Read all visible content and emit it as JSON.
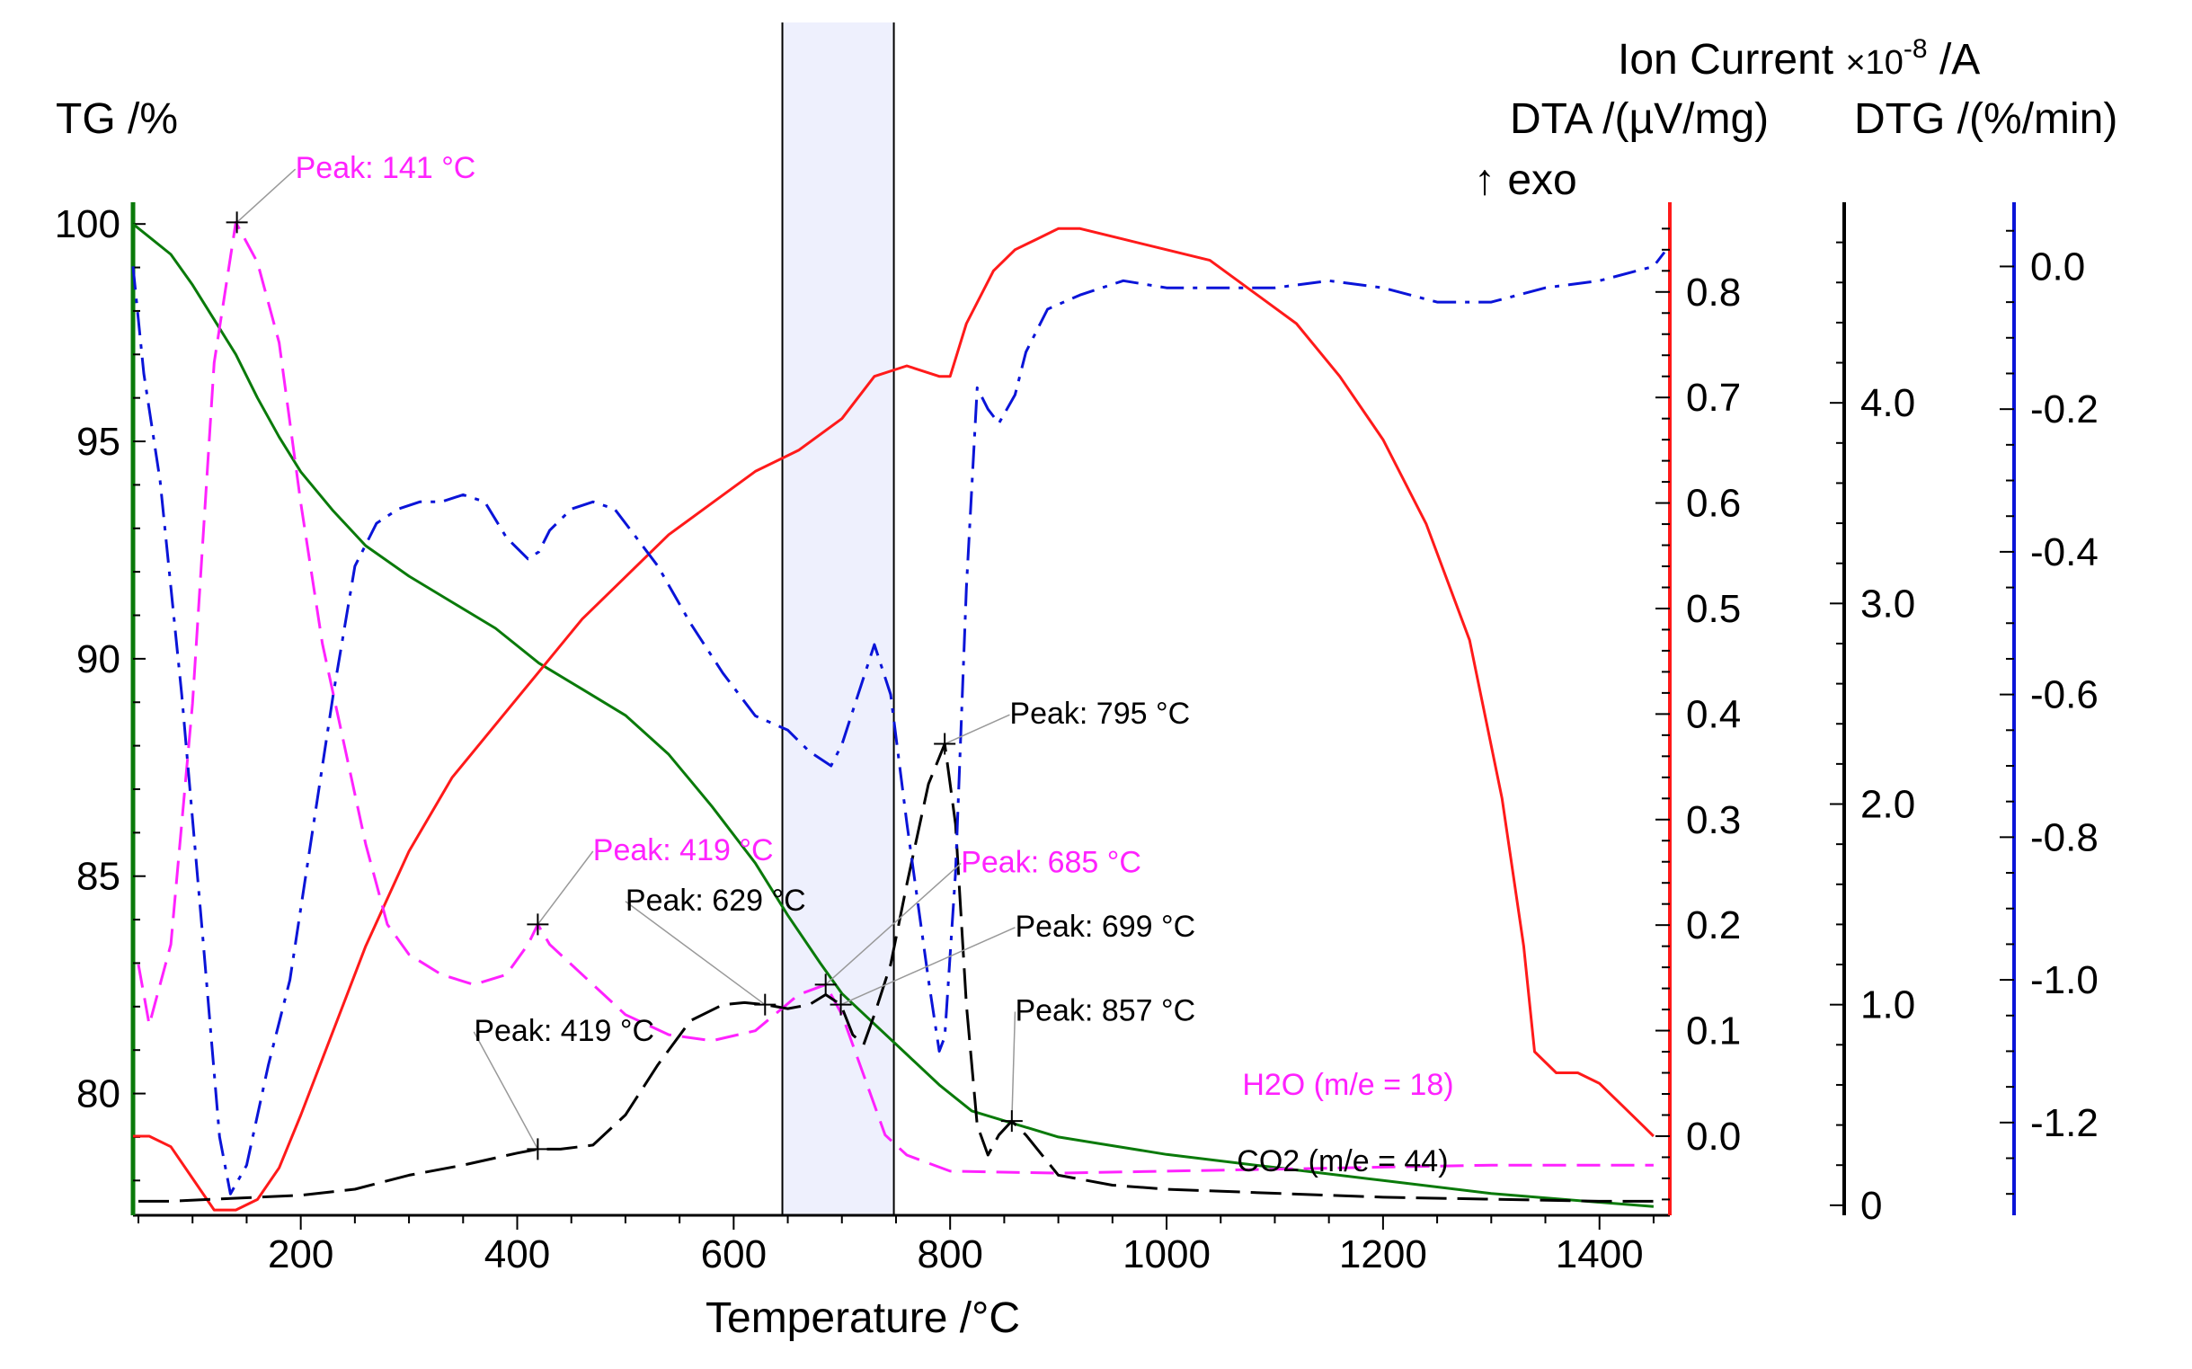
{
  "chart_data": {
    "type": "line",
    "xlabel": "Temperature /°C",
    "xlim": [
      45,
      1465
    ],
    "x_ticks": [
      {
        "value": 200,
        "label": "200"
      },
      {
        "value": 400,
        "label": "400"
      },
      {
        "value": 600,
        "label": "600"
      },
      {
        "value": 800,
        "label": "800"
      },
      {
        "value": 1000,
        "label": "1000"
      },
      {
        "value": 1200,
        "label": "1200"
      },
      {
        "value": 1400,
        "label": "1400"
      }
    ],
    "highlight_band": {
      "x_start": 645,
      "x_end": 748,
      "color": "#eef0fd"
    },
    "axes": {
      "tg": {
        "title": "TG /%",
        "color": "#0a7a0a",
        "ylim": [
          77.2,
          100.5
        ],
        "ticks": [
          {
            "value": 100,
            "label": "100"
          },
          {
            "value": 95,
            "label": "95"
          },
          {
            "value": 90,
            "label": "90"
          },
          {
            "value": 85,
            "label": "85"
          },
          {
            "value": 80,
            "label": "80"
          }
        ]
      },
      "dta": {
        "title_line1": "DTA /(µV/mg)",
        "title_line2": "↑ exo",
        "color": "#ff1a1a",
        "ylim": [
          -0.075,
          0.885
        ],
        "ticks": [
          {
            "value": 0.8,
            "label": "0.8"
          },
          {
            "value": 0.7,
            "label": "0.7"
          },
          {
            "value": 0.6,
            "label": "0.6"
          },
          {
            "value": 0.5,
            "label": "0.5"
          },
          {
            "value": 0.4,
            "label": "0.4"
          },
          {
            "value": 0.3,
            "label": "0.3"
          },
          {
            "value": 0.2,
            "label": "0.2"
          },
          {
            "value": 0.1,
            "label": "0.1"
          },
          {
            "value": 0.0,
            "label": "0.0"
          }
        ]
      },
      "ion": {
        "title_main": "Ion Current ",
        "title_mult": "×10",
        "title_exp": "-8",
        "title_unit": " /A",
        "color": "#000000",
        "ylim": [
          -0.05,
          5.0
        ],
        "ticks": [
          {
            "value": 4.0,
            "label": "4.0"
          },
          {
            "value": 3.0,
            "label": "3.0"
          },
          {
            "value": 2.0,
            "label": "2.0"
          },
          {
            "value": 1.0,
            "label": "1.0"
          },
          {
            "value": 0,
            "label": "0"
          }
        ]
      },
      "dtg": {
        "title": "DTG /(%/min)",
        "color": "#0a14d8",
        "ylim": [
          -1.33,
          0.09
        ],
        "ticks": [
          {
            "value": 0.0,
            "label": "0.0"
          },
          {
            "value": -0.2,
            "label": "-0.2"
          },
          {
            "value": -0.4,
            "label": "-0.4"
          },
          {
            "value": -0.6,
            "label": "-0.6"
          },
          {
            "value": -0.8,
            "label": "-0.8"
          },
          {
            "value": -1.0,
            "label": "-1.0"
          },
          {
            "value": -1.2,
            "label": "-1.2"
          }
        ]
      }
    },
    "series": [
      {
        "name": "TG",
        "axis": "tg",
        "color": "#0a7a0a",
        "style": "solid",
        "x": [
          45,
          60,
          80,
          100,
          120,
          140,
          160,
          180,
          200,
          230,
          260,
          300,
          340,
          380,
          420,
          460,
          500,
          540,
          580,
          620,
          650,
          680,
          700,
          730,
          760,
          790,
          820,
          860,
          900,
          1000,
          1100,
          1200,
          1300,
          1400,
          1450
        ],
        "y": [
          100,
          99.7,
          99.3,
          98.6,
          97.8,
          97.0,
          96.0,
          95.1,
          94.3,
          93.4,
          92.6,
          91.9,
          91.3,
          90.7,
          89.9,
          89.3,
          88.7,
          87.8,
          86.6,
          85.3,
          84.1,
          83.0,
          82.3,
          81.6,
          80.9,
          80.2,
          79.6,
          79.3,
          79.0,
          78.6,
          78.3,
          78.0,
          77.7,
          77.5,
          77.4
        ]
      },
      {
        "name": "DTA",
        "axis": "dta",
        "color": "#ff1a1a",
        "style": "solid",
        "x": [
          45,
          60,
          80,
          100,
          120,
          140,
          160,
          180,
          200,
          230,
          260,
          300,
          340,
          380,
          420,
          460,
          500,
          540,
          580,
          620,
          660,
          700,
          730,
          760,
          790,
          800,
          815,
          840,
          860,
          880,
          900,
          920,
          960,
          1000,
          1040,
          1080,
          1120,
          1160,
          1200,
          1240,
          1280,
          1310,
          1330,
          1340,
          1360,
          1380,
          1400,
          1420,
          1440,
          1450
        ],
        "y": [
          0.0,
          0.0,
          -0.01,
          -0.04,
          -0.07,
          -0.07,
          -0.06,
          -0.03,
          0.02,
          0.1,
          0.18,
          0.27,
          0.34,
          0.39,
          0.44,
          0.49,
          0.53,
          0.57,
          0.6,
          0.63,
          0.65,
          0.68,
          0.72,
          0.73,
          0.72,
          0.72,
          0.77,
          0.82,
          0.84,
          0.85,
          0.86,
          0.86,
          0.85,
          0.84,
          0.83,
          0.8,
          0.77,
          0.72,
          0.66,
          0.58,
          0.47,
          0.32,
          0.18,
          0.08,
          0.06,
          0.06,
          0.05,
          0.03,
          0.01,
          0.0
        ]
      },
      {
        "name": "H2O (m/e = 18)",
        "axis": "ion",
        "color": "#ff22ff",
        "style": "dash",
        "x": [
          50,
          60,
          80,
          100,
          120,
          140,
          160,
          180,
          200,
          220,
          240,
          260,
          280,
          300,
          330,
          360,
          390,
          410,
          419,
          430,
          460,
          500,
          540,
          580,
          620,
          660,
          685,
          700,
          720,
          740,
          760,
          800,
          900,
          1000,
          1100,
          1200,
          1300,
          1400,
          1450
        ],
        "y": [
          1.2,
          0.9,
          1.3,
          2.5,
          4.2,
          4.9,
          4.7,
          4.3,
          3.5,
          2.8,
          2.3,
          1.8,
          1.4,
          1.25,
          1.15,
          1.1,
          1.15,
          1.3,
          1.4,
          1.3,
          1.15,
          0.95,
          0.85,
          0.82,
          0.87,
          1.05,
          1.1,
          0.95,
          0.65,
          0.35,
          0.25,
          0.17,
          0.16,
          0.17,
          0.18,
          0.19,
          0.2,
          0.2,
          0.2
        ]
      },
      {
        "name": "CO2 (m/e = 44)",
        "axis": "ion",
        "color": "#000000",
        "style": "longdash",
        "x": [
          50,
          80,
          120,
          160,
          200,
          250,
          300,
          350,
          400,
          419,
          440,
          470,
          500,
          530,
          560,
          590,
          610,
          629,
          650,
          670,
          685,
          699,
          710,
          720,
          730,
          745,
          760,
          780,
          795,
          805,
          815,
          825,
          835,
          845,
          857,
          870,
          900,
          950,
          1000,
          1100,
          1200,
          1300,
          1400,
          1450
        ],
        "y": [
          0.02,
          0.02,
          0.03,
          0.04,
          0.05,
          0.08,
          0.15,
          0.2,
          0.26,
          0.28,
          0.28,
          0.3,
          0.45,
          0.7,
          0.92,
          1.0,
          1.01,
          1.0,
          0.98,
          1.0,
          1.05,
          1.0,
          0.85,
          0.8,
          0.95,
          1.2,
          1.6,
          2.1,
          2.3,
          1.9,
          1.0,
          0.4,
          0.25,
          0.35,
          0.42,
          0.35,
          0.15,
          0.1,
          0.08,
          0.06,
          0.04,
          0.03,
          0.02,
          0.02
        ]
      },
      {
        "name": "DTG",
        "axis": "dtg",
        "color": "#0a14d8",
        "style": "dashdot",
        "x": [
          45,
          55,
          70,
          90,
          110,
          125,
          135,
          150,
          170,
          190,
          210,
          230,
          250,
          270,
          290,
          310,
          330,
          350,
          370,
          390,
          410,
          420,
          430,
          450,
          470,
          490,
          510,
          530,
          560,
          590,
          620,
          650,
          670,
          690,
          700,
          715,
          730,
          745,
          760,
          780,
          790,
          795,
          805,
          815,
          825,
          835,
          845,
          860,
          870,
          890,
          920,
          960,
          1000,
          1050,
          1100,
          1150,
          1200,
          1250,
          1300,
          1350,
          1400,
          1450,
          1460
        ],
        "y": [
          0.0,
          -0.15,
          -0.3,
          -0.6,
          -0.95,
          -1.22,
          -1.3,
          -1.26,
          -1.12,
          -1.0,
          -0.8,
          -0.6,
          -0.42,
          -0.36,
          -0.34,
          -0.33,
          -0.33,
          -0.32,
          -0.33,
          -0.38,
          -0.41,
          -0.4,
          -0.37,
          -0.34,
          -0.33,
          -0.34,
          -0.38,
          -0.42,
          -0.5,
          -0.57,
          -0.63,
          -0.65,
          -0.68,
          -0.7,
          -0.67,
          -0.6,
          -0.53,
          -0.6,
          -0.78,
          -1.0,
          -1.1,
          -1.08,
          -0.85,
          -0.45,
          -0.17,
          -0.2,
          -0.22,
          -0.18,
          -0.12,
          -0.06,
          -0.04,
          -0.02,
          -0.03,
          -0.03,
          -0.03,
          -0.02,
          -0.03,
          -0.05,
          -0.05,
          -0.03,
          -0.02,
          0.0,
          0.02
        ]
      }
    ],
    "series_labels": [
      {
        "text": "H2O (m/e = 18)",
        "color": "#ff22ff",
        "x": 1070,
        "axis": "ion",
        "y": 0.55
      },
      {
        "text": "CO2 (m/e = 44)",
        "color": "#000000",
        "x": 1065,
        "axis": "ion",
        "y": 0.17
      }
    ],
    "peaks": [
      {
        "text": "Peak: 141 °C",
        "color": "#ff22ff",
        "x": 141,
        "axis": "ion",
        "y": 4.9,
        "lx": 195,
        "ly": 5.12
      },
      {
        "text": "Peak: 419 °C",
        "color": "#ff22ff",
        "x": 419,
        "axis": "ion",
        "y": 1.4,
        "lx": 470,
        "ly": 1.72
      },
      {
        "text": "Peak: 685 °C",
        "color": "#ff22ff",
        "x": 685,
        "axis": "ion",
        "y": 1.1,
        "lx": 810,
        "ly": 1.66
      },
      {
        "text": "Peak: 419 °C",
        "color": "#000000",
        "x": 419,
        "axis": "ion",
        "y": 0.28,
        "lx": 360,
        "ly": 0.82
      },
      {
        "text": "Peak: 629 °C",
        "color": "#000000",
        "x": 629,
        "axis": "ion",
        "y": 1.0,
        "lx": 500,
        "ly": 1.47
      },
      {
        "text": "Peak: 699 °C",
        "color": "#000000",
        "x": 699,
        "axis": "ion",
        "y": 1.0,
        "lx": 860,
        "ly": 1.34
      },
      {
        "text": "Peak: 795 °C",
        "color": "#000000",
        "x": 795,
        "axis": "ion",
        "y": 2.3,
        "lx": 855,
        "ly": 2.4
      },
      {
        "text": "Peak: 857 °C",
        "color": "#000000",
        "x": 857,
        "axis": "ion",
        "y": 0.42,
        "lx": 860,
        "ly": 0.92
      }
    ]
  }
}
